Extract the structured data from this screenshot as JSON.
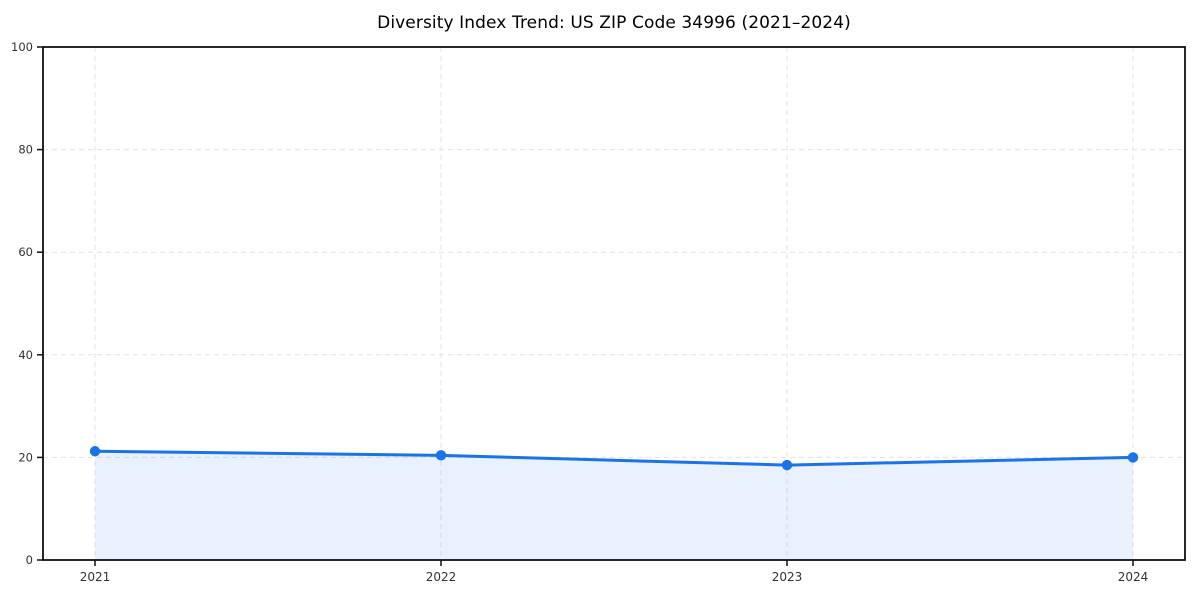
{
  "chart_data": {
    "type": "line",
    "title": "Diversity Index Trend: US ZIP Code 34996 (2021–2024)",
    "categories": [
      "2021",
      "2022",
      "2023",
      "2024"
    ],
    "series": [
      {
        "name": "Diversity Index",
        "values": [
          21.2,
          20.4,
          18.5,
          20.0
        ]
      }
    ],
    "xlabel": "",
    "ylabel": "",
    "ylim": [
      0,
      100
    ],
    "yticks": [
      0,
      20,
      40,
      60,
      80,
      100
    ],
    "grid": {
      "visible": true,
      "style": "dashed",
      "horizontal": true,
      "vertical": true
    },
    "legend_position": "none",
    "marker_style": "circle",
    "area_fill": true,
    "colors": {
      "line": "#1a73e8",
      "marker": "#1a73e8",
      "area_fill": "rgba(26,115,232,0.10)",
      "grid": "#e3e3e3",
      "spine": "#111111",
      "tick_label": "#333333",
      "title": "#000000",
      "background": "#ffffff"
    }
  }
}
